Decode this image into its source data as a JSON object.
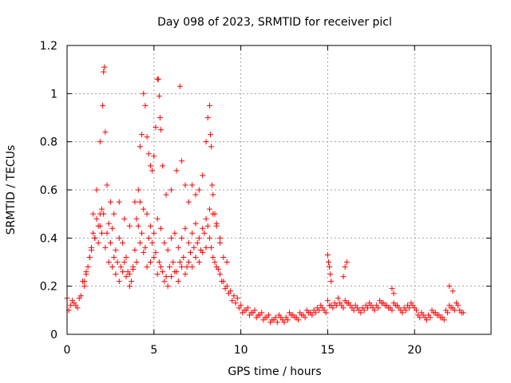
{
  "chart_data": {
    "type": "scatter",
    "title": "Day 098 of 2023, SRMTID for receiver picl",
    "xlabel": "GPS time / hours",
    "ylabel": "SRMTID / TECUs",
    "xlim": [
      0,
      24.4
    ],
    "ylim": [
      0,
      1.2
    ],
    "xticks": [
      0,
      5,
      10,
      15,
      20
    ],
    "yticks": [
      0,
      0.2,
      0.4,
      0.6,
      0.8,
      1,
      1.2
    ],
    "xtick_labels": [
      "0",
      "5",
      "10",
      "15",
      "20"
    ],
    "ytick_labels": [
      "0",
      "0.2",
      "0.4",
      "0.6",
      "0.8",
      "1",
      "1.2"
    ],
    "grid": true,
    "marker": "+",
    "color": "#ff0000",
    "series": [
      {
        "name": "SRMTID",
        "x": [
          0.0,
          0.2,
          0.4,
          0.6,
          0.8,
          1.0,
          1.2,
          1.4,
          1.6,
          1.8,
          2.0,
          2.2,
          2.4,
          2.6,
          2.8,
          3.0,
          3.2,
          3.4,
          3.6,
          3.8,
          4.0,
          4.2,
          4.4,
          4.6,
          4.8,
          5.0,
          5.2,
          5.4,
          5.6,
          5.8,
          6.0,
          6.2,
          6.4,
          6.6,
          6.8,
          7.0,
          7.2,
          7.4,
          7.6,
          7.8,
          8.0,
          8.2,
          8.4,
          8.6,
          8.8,
          9.0,
          9.2,
          9.4,
          9.6,
          9.8,
          10.0,
          10.2,
          10.4,
          10.6,
          10.8,
          11.0,
          11.2,
          11.4,
          11.6,
          11.8,
          12.0,
          12.2,
          12.4,
          12.6,
          12.8,
          13.0,
          13.2,
          13.4,
          13.6,
          13.8,
          14.0,
          14.2,
          14.4,
          14.6,
          14.8,
          15.0,
          15.2,
          15.4,
          15.6,
          15.8,
          16.0,
          16.2,
          16.4,
          16.6,
          16.8,
          17.0,
          17.2,
          17.4,
          17.6,
          17.8,
          18.0,
          18.2,
          18.4,
          18.6,
          18.8,
          19.0,
          19.2,
          19.4,
          19.6,
          19.8,
          20.0,
          20.2,
          20.4,
          20.6,
          20.8,
          21.0,
          21.2,
          21.4,
          21.6,
          21.8,
          22.0,
          22.2,
          22.4,
          22.6,
          22.8,
          0.1,
          0.3,
          0.5,
          0.7,
          0.9,
          1.1,
          1.3,
          1.5,
          1.7,
          1.9,
          2.1,
          2.3,
          2.5,
          2.7,
          2.9,
          3.1,
          3.3,
          3.5,
          3.7,
          3.9,
          4.1,
          4.3,
          4.5,
          4.7,
          4.9,
          5.1,
          5.3,
          5.5,
          5.7,
          5.9,
          6.1,
          6.3,
          6.5,
          6.7,
          6.9,
          7.1,
          7.3,
          7.5,
          7.7,
          7.9,
          8.1,
          8.3,
          8.5,
          8.7,
          8.9,
          9.1,
          9.3,
          9.5,
          9.7,
          9.9,
          10.1,
          10.3,
          10.5,
          10.7,
          10.9,
          11.1,
          11.3,
          11.5,
          11.7,
          11.9,
          12.1,
          12.3,
          12.5,
          12.7,
          12.9,
          13.1,
          13.3,
          13.5,
          13.7,
          13.9,
          14.1,
          14.3,
          14.5,
          14.7,
          14.9,
          15.1,
          15.3,
          15.5,
          15.7,
          15.9,
          16.1,
          16.3,
          16.5,
          16.7,
          16.9,
          17.1,
          17.3,
          17.5,
          17.7,
          17.9,
          18.1,
          18.3,
          18.5,
          18.7,
          18.9,
          19.1,
          19.3,
          19.5,
          19.7,
          19.9,
          20.1,
          20.3,
          20.5,
          20.7,
          20.9,
          21.1,
          21.3,
          21.5,
          21.7,
          21.9,
          22.1,
          22.3,
          22.5,
          22.7,
          1.5,
          1.7,
          1.9,
          2.05,
          2.1,
          2.15,
          2.2,
          2.3,
          2.5,
          2.7,
          3.0,
          3.3,
          3.6,
          3.9,
          4.1,
          4.2,
          4.3,
          4.4,
          4.5,
          4.6,
          4.7,
          4.8,
          4.9,
          5.0,
          5.1,
          5.2,
          5.25,
          5.3,
          5.35,
          5.4,
          5.5,
          5.7,
          6.0,
          6.3,
          6.5,
          6.6,
          6.8,
          7.0,
          7.2,
          7.4,
          7.6,
          7.8,
          8.0,
          8.1,
          8.2,
          8.25,
          8.3,
          8.35,
          8.4,
          8.5,
          8.6,
          8.8,
          9.0,
          9.2,
          1.0,
          1.1,
          1.3,
          1.4,
          1.6,
          1.8,
          1.9,
          2.0,
          2.4,
          2.6,
          2.8,
          3.0,
          3.2,
          3.4,
          3.6,
          3.8,
          4.0,
          4.2,
          4.4,
          4.6,
          4.8,
          5.0,
          5.2,
          5.4,
          5.6,
          5.8,
          6.0,
          6.2,
          6.4,
          6.6,
          6.8,
          7.0,
          7.2,
          7.4,
          7.6,
          7.8,
          8.0,
          8.2,
          8.4,
          8.6,
          8.8,
          15.0,
          15.05,
          15.1,
          15.15,
          15.2,
          15.9,
          16.0,
          16.1,
          18.7,
          18.8,
          22.0,
          22.2
        ],
        "y": [
          0.15,
          0.12,
          0.13,
          0.11,
          0.16,
          0.2,
          0.28,
          0.35,
          0.4,
          0.38,
          0.42,
          0.36,
          0.3,
          0.28,
          0.25,
          0.22,
          0.26,
          0.24,
          0.2,
          0.27,
          0.3,
          0.38,
          0.34,
          0.28,
          0.3,
          0.32,
          0.25,
          0.28,
          0.22,
          0.2,
          0.24,
          0.26,
          0.22,
          0.28,
          0.25,
          0.3,
          0.28,
          0.32,
          0.3,
          0.34,
          0.36,
          0.4,
          0.32,
          0.28,
          0.25,
          0.22,
          0.2,
          0.18,
          0.16,
          0.15,
          0.12,
          0.1,
          0.11,
          0.09,
          0.1,
          0.08,
          0.09,
          0.07,
          0.08,
          0.06,
          0.07,
          0.08,
          0.06,
          0.07,
          0.09,
          0.08,
          0.07,
          0.09,
          0.08,
          0.1,
          0.09,
          0.1,
          0.11,
          0.12,
          0.1,
          0.14,
          0.12,
          0.13,
          0.15,
          0.12,
          0.14,
          0.13,
          0.11,
          0.12,
          0.1,
          0.11,
          0.12,
          0.13,
          0.11,
          0.12,
          0.14,
          0.13,
          0.12,
          0.11,
          0.13,
          0.12,
          0.1,
          0.11,
          0.12,
          0.13,
          0.11,
          0.08,
          0.09,
          0.07,
          0.08,
          0.1,
          0.09,
          0.08,
          0.07,
          0.1,
          0.12,
          0.11,
          0.13,
          0.1,
          0.09,
          0.1,
          0.14,
          0.12,
          0.15,
          0.22,
          0.25,
          0.32,
          0.42,
          0.48,
          0.45,
          0.5,
          0.42,
          0.38,
          0.32,
          0.3,
          0.28,
          0.3,
          0.26,
          0.22,
          0.35,
          0.45,
          0.42,
          0.36,
          0.4,
          0.38,
          0.34,
          0.3,
          0.26,
          0.24,
          0.28,
          0.3,
          0.26,
          0.3,
          0.32,
          0.28,
          0.34,
          0.36,
          0.38,
          0.35,
          0.42,
          0.45,
          0.36,
          0.3,
          0.27,
          0.22,
          0.19,
          0.17,
          0.14,
          0.13,
          0.11,
          0.09,
          0.1,
          0.08,
          0.09,
          0.07,
          0.08,
          0.06,
          0.07,
          0.05,
          0.06,
          0.05,
          0.07,
          0.05,
          0.06,
          0.08,
          0.07,
          0.06,
          0.08,
          0.07,
          0.09,
          0.08,
          0.09,
          0.1,
          0.11,
          0.09,
          0.12,
          0.11,
          0.12,
          0.13,
          0.11,
          0.13,
          0.12,
          0.1,
          0.11,
          0.09,
          0.1,
          0.11,
          0.12,
          0.1,
          0.11,
          0.13,
          0.12,
          0.11,
          0.1,
          0.12,
          0.11,
          0.09,
          0.1,
          0.11,
          0.12,
          0.1,
          0.07,
          0.08,
          0.06,
          0.07,
          0.09,
          0.08,
          0.07,
          0.06,
          0.09,
          0.11,
          0.1,
          0.12,
          0.09,
          0.5,
          0.6,
          0.8,
          0.95,
          1.09,
          1.11,
          0.84,
          0.62,
          0.55,
          0.5,
          0.55,
          0.48,
          0.45,
          0.55,
          0.6,
          0.78,
          0.83,
          1.0,
          0.95,
          0.82,
          0.75,
          0.7,
          0.68,
          0.74,
          0.86,
          1.06,
          1.06,
          0.99,
          0.9,
          0.85,
          0.7,
          0.58,
          0.6,
          0.68,
          1.03,
          0.72,
          0.62,
          0.55,
          0.62,
          0.58,
          0.6,
          0.66,
          0.8,
          0.9,
          0.95,
          0.83,
          0.78,
          0.62,
          0.58,
          0.5,
          0.45,
          0.38,
          0.32,
          0.3,
          0.22,
          0.26,
          0.32,
          0.36,
          0.4,
          0.45,
          0.5,
          0.52,
          0.46,
          0.44,
          0.35,
          0.4,
          0.38,
          0.32,
          0.25,
          0.28,
          0.48,
          0.55,
          0.52,
          0.5,
          0.45,
          0.42,
          0.48,
          0.44,
          0.38,
          0.35,
          0.4,
          0.42,
          0.36,
          0.4,
          0.44,
          0.38,
          0.42,
          0.46,
          0.4,
          0.44,
          0.48,
          0.52,
          0.5,
          0.46,
          0.4,
          0.33,
          0.3,
          0.28,
          0.25,
          0.22,
          0.24,
          0.28,
          0.3,
          0.19,
          0.17,
          0.2,
          0.18
        ]
      }
    ]
  }
}
